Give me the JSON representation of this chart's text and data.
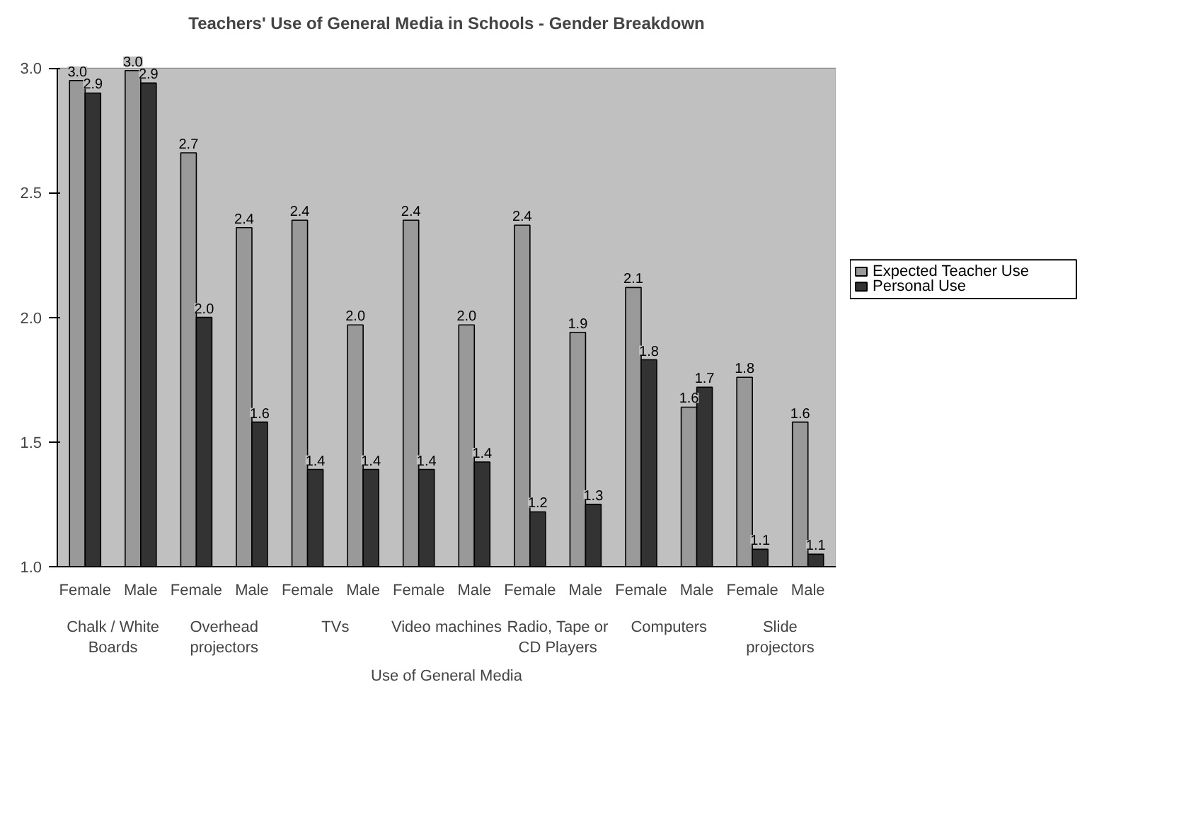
{
  "chart_data": {
    "type": "bar",
    "title": "Teachers' Use of General Media in Schools - Gender Breakdown",
    "xlabel": "Use of General Media",
    "categories": [
      "Female",
      "Male",
      "Female",
      "Male",
      "Female",
      "Male",
      "Female",
      "Male",
      "Female",
      "Male",
      "Female",
      "Male",
      "Female",
      "Male"
    ],
    "annotations": [
      "Chalk / White Boards",
      "Overhead projectors",
      "TVs",
      "Video machines",
      "Radio, Tape or CD Players",
      "Computers",
      "Slide projectors"
    ],
    "series": [
      {
        "name": "Expected Teacher Use",
        "color": "#999999",
        "values": [
          2.95,
          2.99,
          2.66,
          2.36,
          2.39,
          1.97,
          2.39,
          1.97,
          2.37,
          1.94,
          2.12,
          1.64,
          1.76,
          1.58
        ],
        "value_labels": [
          "3.0",
          "3.0",
          "2.7",
          "2.4",
          "2.4",
          "2.0",
          "2.4",
          "2.0",
          "2.4",
          "1.9",
          "2.1",
          "1.6",
          "1.8",
          "1.6"
        ]
      },
      {
        "name": "Personal Use",
        "color": "#333333",
        "values": [
          2.9,
          2.94,
          2.0,
          1.58,
          1.39,
          1.39,
          1.39,
          1.42,
          1.22,
          1.25,
          1.83,
          1.72,
          1.07,
          1.05
        ],
        "value_labels": [
          "2.9",
          "2.9",
          "2.0",
          "1.6",
          "1.4",
          "1.4",
          "1.4",
          "1.4",
          "1.2",
          "1.3",
          "1.8",
          "1.7",
          "1.1",
          "1.1"
        ]
      }
    ],
    "ylim": [
      1,
      3
    ],
    "yticks": [
      {
        "value": 1,
        "label": "1.0"
      },
      {
        "value": 1.5,
        "label": "1.5"
      },
      {
        "value": 2,
        "label": "2.0"
      },
      {
        "value": 2.5,
        "label": "2.5"
      },
      {
        "value": 3,
        "label": "3.0"
      }
    ],
    "grid": "y",
    "legend": "right"
  }
}
